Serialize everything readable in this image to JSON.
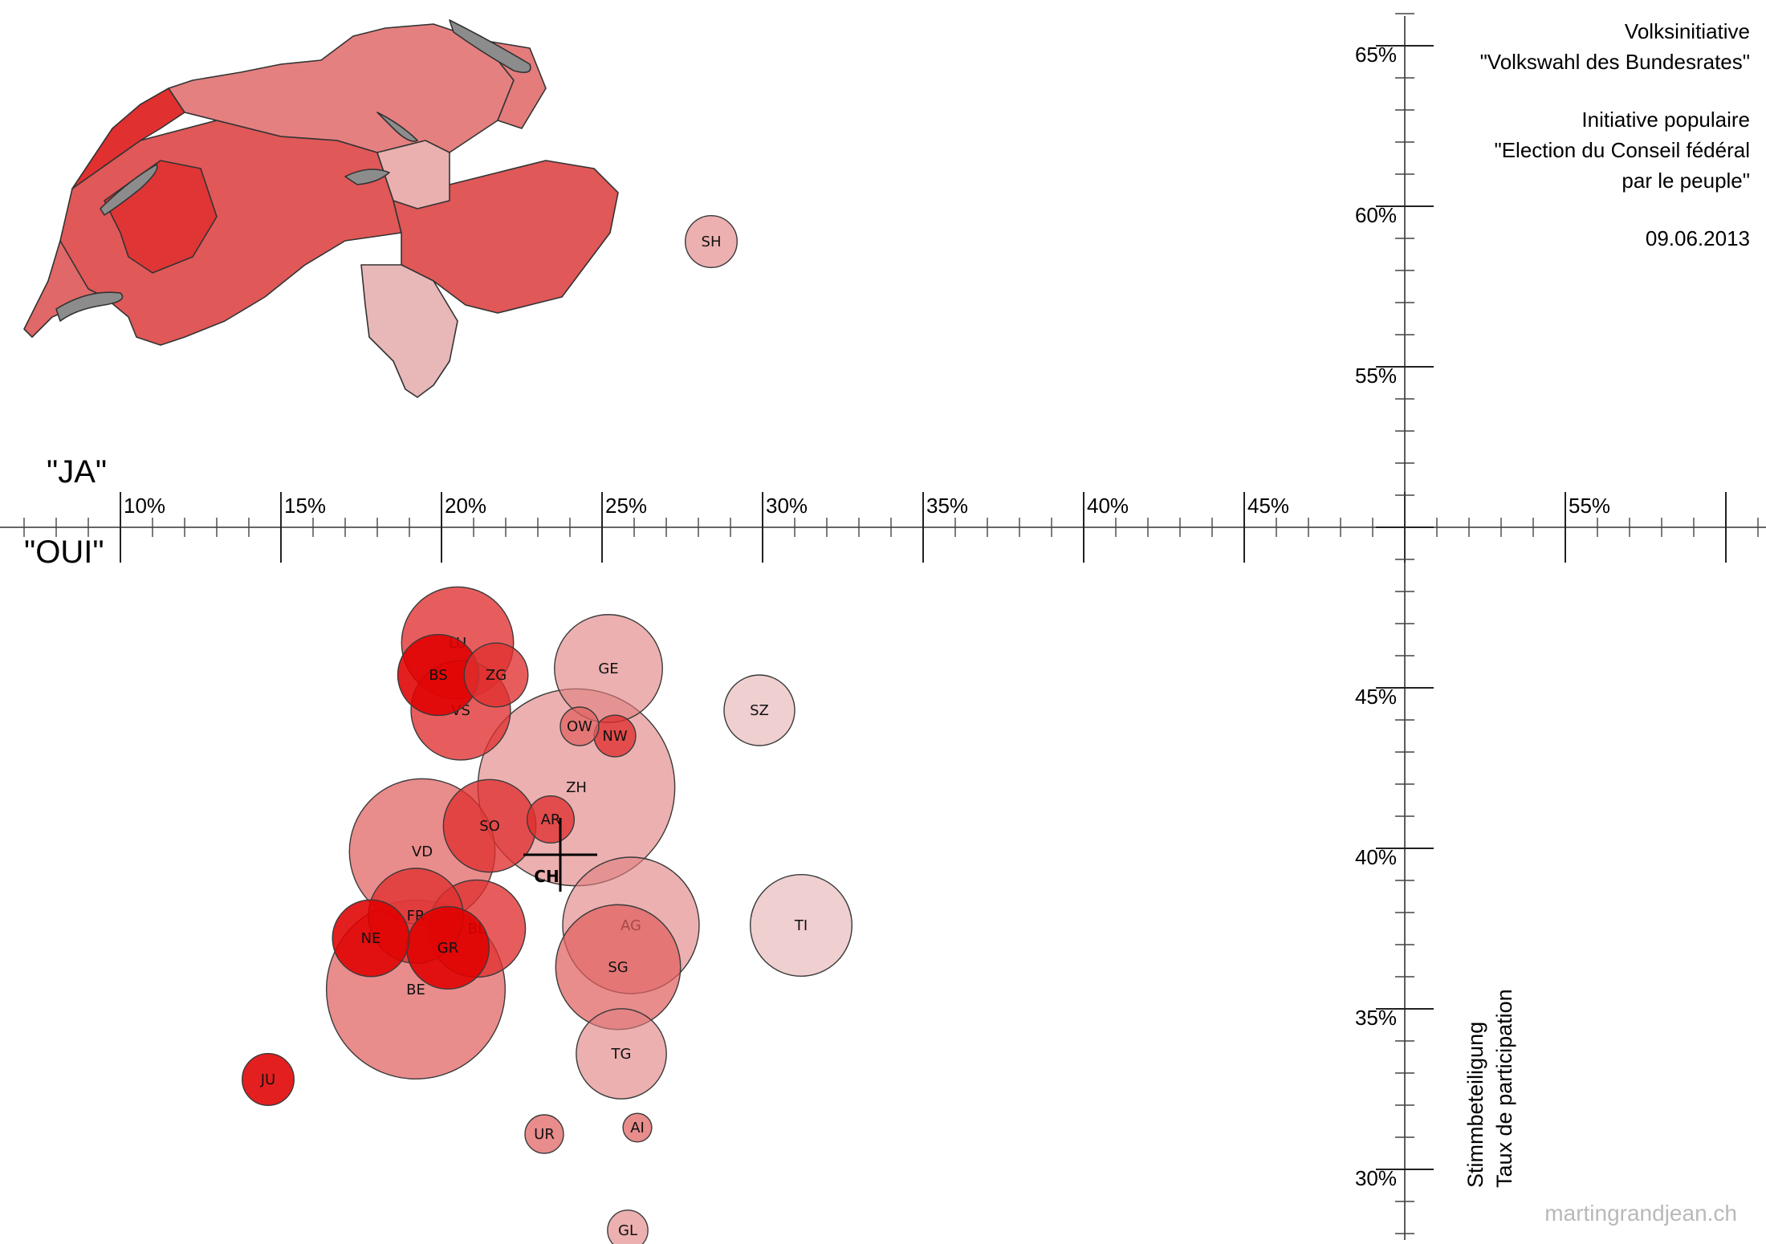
{
  "chart_data": {
    "type": "scatter",
    "title_de": [
      "Volksinitiative",
      "\"Volkswahl des Bundesrates\""
    ],
    "title_fr": [
      "Initiative populaire",
      "\"Election du Conseil fédéral",
      "par le peuple\""
    ],
    "date": "09.06.2013",
    "xlabel_top": "\"JA\"",
    "xlabel_bottom": "\"OUI\"",
    "ylabel": [
      "Stimmbeteiligung",
      "Taux de participation"
    ],
    "credit": "martingrandjean.ch",
    "xlim": [
      7,
      62
    ],
    "ylim": [
      27,
      66
    ],
    "x_major_ticks": [
      10,
      15,
      20,
      25,
      30,
      35,
      40,
      45,
      50,
      55,
      60
    ],
    "x_tick_labels": [
      "10%",
      "15%",
      "20%",
      "25%",
      "30%",
      "35%",
      "40%",
      "45%",
      "55%"
    ],
    "y_tick_labels": [
      "30%",
      "35%",
      "40%",
      "45%",
      "55%",
      "60%",
      "65%"
    ],
    "x_axis_cross_y": 50,
    "y_axis_cross_x": 50,
    "national": {
      "label": "CH",
      "yes": 23.7,
      "turnout": 39.8
    },
    "colors": {
      "strong": "#e00000",
      "mid": "#e03030",
      "light": "#e06060",
      "pale": "#e08080",
      "faint": "#e0a0a0"
    },
    "points": [
      {
        "canton": "SH",
        "yes": 28.4,
        "turnout": 58.9,
        "voters": 50,
        "shade": "pale"
      },
      {
        "canton": "LU",
        "yes": 20.5,
        "turnout": 46.4,
        "voters": 270,
        "shade": "mid"
      },
      {
        "canton": "BS",
        "yes": 19.9,
        "turnout": 45.4,
        "voters": 135,
        "shade": "strong"
      },
      {
        "canton": "ZG",
        "yes": 21.7,
        "turnout": 45.4,
        "voters": 80,
        "shade": "mid"
      },
      {
        "canton": "GE",
        "yes": 25.2,
        "turnout": 45.6,
        "voters": 250,
        "shade": "pale"
      },
      {
        "canton": "SZ",
        "yes": 29.9,
        "turnout": 44.3,
        "voters": 100,
        "shade": "faint"
      },
      {
        "canton": "VS",
        "yes": 20.6,
        "turnout": 44.3,
        "voters": 210,
        "shade": "mid"
      },
      {
        "canton": "OW",
        "yes": 24.3,
        "turnout": 43.8,
        "voters": 25,
        "shade": "light"
      },
      {
        "canton": "NW",
        "yes": 25.4,
        "turnout": 43.5,
        "voters": 30,
        "shade": "mid"
      },
      {
        "canton": "ZH",
        "yes": 24.2,
        "turnout": 41.9,
        "voters": 880,
        "shade": "pale"
      },
      {
        "canton": "AR",
        "yes": 23.4,
        "turnout": 40.9,
        "voters": 40,
        "shade": "mid"
      },
      {
        "canton": "SO",
        "yes": 21.5,
        "turnout": 40.7,
        "voters": 180,
        "shade": "mid"
      },
      {
        "canton": "VD",
        "yes": 19.4,
        "turnout": 39.9,
        "voters": 470,
        "shade": "light"
      },
      {
        "canton": "AG",
        "yes": 25.9,
        "turnout": 37.6,
        "voters": 410,
        "shade": "pale"
      },
      {
        "canton": "TI",
        "yes": 31.2,
        "turnout": 37.6,
        "voters": 220,
        "shade": "faint"
      },
      {
        "canton": "FR",
        "yes": 19.2,
        "turnout": 37.9,
        "voters": 190,
        "shade": "mid"
      },
      {
        "canton": "BL",
        "yes": 21.1,
        "turnout": 37.5,
        "voters": 200,
        "shade": "mid"
      },
      {
        "canton": "NE",
        "yes": 17.8,
        "turnout": 37.2,
        "voters": 120,
        "shade": "strong"
      },
      {
        "canton": "GR",
        "yes": 20.2,
        "turnout": 36.9,
        "voters": 140,
        "shade": "strong"
      },
      {
        "canton": "SG",
        "yes": 25.5,
        "turnout": 36.3,
        "voters": 340,
        "shade": "light"
      },
      {
        "canton": "BE",
        "yes": 19.2,
        "turnout": 35.6,
        "voters": 720,
        "shade": "light"
      },
      {
        "canton": "TG",
        "yes": 25.6,
        "turnout": 33.6,
        "voters": 170,
        "shade": "pale"
      },
      {
        "canton": "JU",
        "yes": 14.6,
        "turnout": 32.8,
        "voters": 50,
        "shade": "strong"
      },
      {
        "canton": "AI",
        "yes": 26.1,
        "turnout": 31.3,
        "voters": 12,
        "shade": "light"
      },
      {
        "canton": "UR",
        "yes": 23.2,
        "turnout": 31.1,
        "voters": 25,
        "shade": "light"
      },
      {
        "canton": "GL",
        "yes": 25.8,
        "turnout": 28.1,
        "voters": 28,
        "shade": "pale"
      }
    ]
  }
}
